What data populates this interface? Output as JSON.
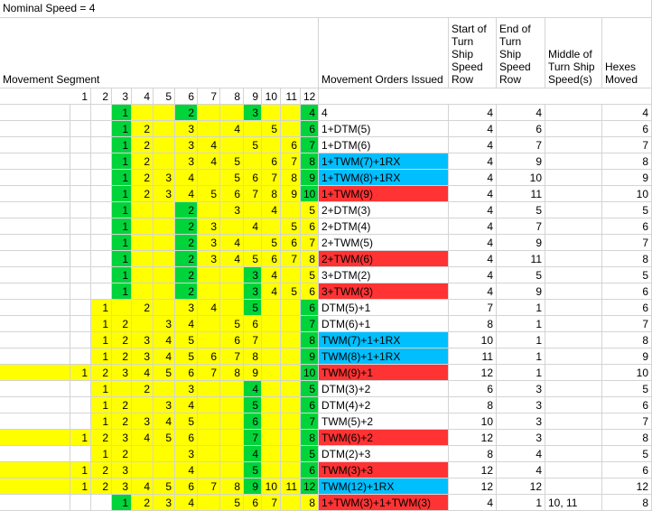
{
  "title": "Nominal Speed = 4",
  "headers": {
    "segment": "Movement Segment",
    "orders": "Movement Orders Issued",
    "start": "Start of Turn Ship Speed Row",
    "end": "End of Turn Ship Speed Row",
    "middle": "Middle of Turn Ship Speed(s)",
    "hexes": "Hexes Moved"
  },
  "segments": [
    "1",
    "2",
    "3",
    "4",
    "5",
    "6",
    "7",
    "8",
    "9",
    "10",
    "11",
    "12"
  ],
  "colors": {
    "yellow": "#ffff00",
    "green": "#00d43a",
    "blue": "#00bfff",
    "red": "#ff3333"
  },
  "rows": [
    {
      "cells": [
        "",
        "",
        "1",
        "",
        "",
        "2",
        "",
        "",
        "3",
        "",
        "",
        "4"
      ],
      "order": "4",
      "start": "4",
      "end": "4",
      "mid": "",
      "hexes": "4",
      "hl": ""
    },
    {
      "cells": [
        "",
        "",
        "1",
        "2",
        "",
        "3",
        "",
        "4",
        "",
        "5",
        "",
        "6"
      ],
      "order": "1+DTM(5)",
      "start": "4",
      "end": "6",
      "mid": "",
      "hexes": "6",
      "hl": ""
    },
    {
      "cells": [
        "",
        "",
        "1",
        "2",
        "",
        "3",
        "4",
        "",
        "5",
        "",
        "6",
        "7"
      ],
      "order": "1+DTM(6)",
      "start": "4",
      "end": "7",
      "mid": "",
      "hexes": "7",
      "hl": ""
    },
    {
      "cells": [
        "",
        "",
        "1",
        "2",
        "",
        "3",
        "4",
        "5",
        "",
        "6",
        "7",
        "8"
      ],
      "order": "1+TWM(7)+1RX",
      "start": "4",
      "end": "9",
      "mid": "",
      "hexes": "8",
      "hl": "b"
    },
    {
      "cells": [
        "",
        "",
        "1",
        "2",
        "3",
        "4",
        "",
        "5",
        "6",
        "7",
        "8",
        "9"
      ],
      "order": "1+TWM(8)+1RX",
      "start": "4",
      "end": "10",
      "mid": "",
      "hexes": "9",
      "hl": "b"
    },
    {
      "cells": [
        "",
        "",
        "1",
        "2",
        "3",
        "4",
        "5",
        "6",
        "7",
        "8",
        "9",
        "10"
      ],
      "order": "1+TWM(9)",
      "start": "4",
      "end": "11",
      "mid": "",
      "hexes": "10",
      "hl": "red"
    },
    {
      "cells": [
        "",
        "",
        "1",
        "",
        "",
        "2",
        "",
        "3",
        "",
        "4",
        "",
        "5"
      ],
      "order": "2+DTM(3)",
      "start": "4",
      "end": "5",
      "mid": "",
      "hexes": "5",
      "hl": ""
    },
    {
      "cells": [
        "",
        "",
        "1",
        "",
        "",
        "2",
        "3",
        "",
        "4",
        "",
        "5",
        "6"
      ],
      "order": "2+DTM(4)",
      "start": "4",
      "end": "7",
      "mid": "",
      "hexes": "6",
      "hl": ""
    },
    {
      "cells": [
        "",
        "",
        "1",
        "",
        "",
        "2",
        "3",
        "4",
        "",
        "5",
        "6",
        "7"
      ],
      "order": "2+TWM(5)",
      "start": "4",
      "end": "9",
      "mid": "",
      "hexes": "7",
      "hl": ""
    },
    {
      "cells": [
        "",
        "",
        "1",
        "",
        "",
        "2",
        "3",
        "4",
        "5",
        "6",
        "7",
        "8"
      ],
      "order": "2+TWM(6)",
      "start": "4",
      "end": "11",
      "mid": "",
      "hexes": "8",
      "hl": "red"
    },
    {
      "cells": [
        "",
        "",
        "1",
        "",
        "",
        "2",
        "",
        "",
        "3",
        "4",
        "",
        "5"
      ],
      "order": "3+DTM(2)",
      "start": "4",
      "end": "5",
      "mid": "",
      "hexes": "5",
      "hl": ""
    },
    {
      "cells": [
        "",
        "",
        "1",
        "",
        "",
        "2",
        "",
        "",
        "3",
        "4",
        "5",
        "6"
      ],
      "order": "3+TWM(3)",
      "start": "4",
      "end": "9",
      "mid": "",
      "hexes": "6",
      "hl": "red"
    },
    {
      "cells": [
        "",
        "1",
        "",
        "2",
        "",
        "3",
        "4",
        "",
        "5",
        "",
        "",
        "6"
      ],
      "order": "DTM(5)+1",
      "start": "7",
      "end": "1",
      "mid": "",
      "hexes": "6",
      "hl": ""
    },
    {
      "cells": [
        "",
        "1",
        "2",
        "",
        "3",
        "4",
        "",
        "5",
        "6",
        "",
        "",
        "7"
      ],
      "order": "DTM(6)+1",
      "start": "8",
      "end": "1",
      "mid": "",
      "hexes": "7",
      "hl": ""
    },
    {
      "cells": [
        "",
        "1",
        "2",
        "3",
        "4",
        "5",
        "",
        "6",
        "7",
        "",
        "",
        "8"
      ],
      "order": "TWM(7)+1+1RX",
      "start": "10",
      "end": "1",
      "mid": "",
      "hexes": "8",
      "hl": "b"
    },
    {
      "cells": [
        "",
        "1",
        "2",
        "3",
        "4",
        "5",
        "6",
        "7",
        "8",
        "",
        "",
        "9"
      ],
      "order": "TWM(8)+1+1RX",
      "start": "11",
      "end": "1",
      "mid": "",
      "hexes": "9",
      "hl": "b"
    },
    {
      "cells": [
        "1",
        "2",
        "3",
        "4",
        "5",
        "6",
        "7",
        "8",
        "9",
        "",
        "",
        "10"
      ],
      "order": "TWM(9)+1",
      "start": "12",
      "end": "1",
      "mid": "",
      "hexes": "10",
      "hl": "red"
    },
    {
      "cells": [
        "",
        "1",
        "",
        "2",
        "",
        "3",
        "",
        "",
        "4",
        "",
        "",
        "5"
      ],
      "order": "DTM(3)+2",
      "start": "6",
      "end": "3",
      "mid": "",
      "hexes": "5",
      "hl": ""
    },
    {
      "cells": [
        "",
        "1",
        "2",
        "",
        "3",
        "4",
        "",
        "",
        "5",
        "",
        "",
        "6"
      ],
      "order": "DTM(4)+2",
      "start": "8",
      "end": "3",
      "mid": "",
      "hexes": "6",
      "hl": ""
    },
    {
      "cells": [
        "",
        "1",
        "2",
        "3",
        "4",
        "5",
        "",
        "",
        "6",
        "",
        "",
        "7"
      ],
      "order": "TWM(5)+2",
      "start": "10",
      "end": "3",
      "mid": "",
      "hexes": "7",
      "hl": ""
    },
    {
      "cells": [
        "1",
        "2",
        "3",
        "4",
        "5",
        "6",
        "",
        "",
        "7",
        "",
        "",
        "8"
      ],
      "order": "TWM(6)+2",
      "start": "12",
      "end": "3",
      "mid": "",
      "hexes": "8",
      "hl": "red"
    },
    {
      "cells": [
        "",
        "1",
        "2",
        "",
        "",
        "3",
        "",
        "",
        "4",
        "",
        "",
        "5"
      ],
      "order": "DTM(2)+3",
      "start": "8",
      "end": "4",
      "mid": "",
      "hexes": "5",
      "hl": ""
    },
    {
      "cells": [
        "1",
        "2",
        "3",
        "",
        "",
        "4",
        "",
        "",
        "5",
        "",
        "",
        "6"
      ],
      "order": "TWM(3)+3",
      "start": "12",
      "end": "4",
      "mid": "",
      "hexes": "6",
      "hl": "red"
    },
    {
      "cells": [
        "1",
        "2",
        "3",
        "4",
        "5",
        "6",
        "7",
        "8",
        "9",
        "10",
        "11",
        "12"
      ],
      "order": "TWM(12)+1RX",
      "start": "12",
      "end": "12",
      "mid": "",
      "hexes": "12",
      "hl": "b"
    },
    {
      "cells": [
        "",
        "",
        "1",
        "2",
        "3",
        "4",
        "",
        "5",
        "6",
        "7",
        "",
        "8"
      ],
      "order": "1+TWM(3)+1+TWM(3)",
      "start": "4",
      "end": "1",
      "mid": "10, 11",
      "hexes": "8",
      "hl": "red"
    }
  ]
}
